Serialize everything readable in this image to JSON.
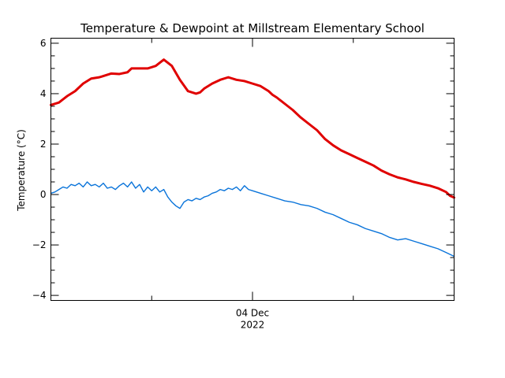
{
  "chart_data": {
    "type": "line",
    "title": "Temperature & Dewpoint at Millstream Elementary School",
    "ylabel": "Temperature (°C)",
    "xlabel": "",
    "ylim": [
      -4.2,
      6.2
    ],
    "xlim": [
      0,
      100
    ],
    "yticks": [
      {
        "value": 6,
        "label": "6"
      },
      {
        "value": 4,
        "label": "4"
      },
      {
        "value": 2,
        "label": "2"
      },
      {
        "value": 0,
        "label": "0"
      },
      {
        "value": -2,
        "label": "−2"
      },
      {
        "value": -4,
        "label": "−4"
      }
    ],
    "y_minor_step": 0.5,
    "xticks": [
      {
        "value": 50,
        "label": "04 Dec",
        "sublabel": "2022"
      }
    ],
    "x_minor_ticks": [
      0,
      25,
      50,
      75,
      100
    ],
    "grid": false,
    "series": [
      {
        "name": "",
        "color": "#e00000",
        "width": 3,
        "x": [
          0,
          2,
          4,
          6,
          8,
          10,
          12,
          14,
          15,
          17,
          19,
          20,
          22,
          24,
          26,
          28,
          30,
          32,
          34,
          36,
          37,
          38,
          40,
          42,
          44,
          46,
          48,
          50,
          52,
          54,
          55,
          56,
          58,
          60,
          62,
          64,
          66,
          68,
          70,
          72,
          74,
          76,
          78,
          80,
          82,
          84,
          86,
          88,
          90,
          92,
          94,
          96,
          98,
          99,
          100
        ],
        "y": [
          3.55,
          3.65,
          3.9,
          4.1,
          4.4,
          4.6,
          4.65,
          4.75,
          4.8,
          4.78,
          4.85,
          5.0,
          5.0,
          5.0,
          5.1,
          5.35,
          5.1,
          4.55,
          4.1,
          4.0,
          4.05,
          4.2,
          4.4,
          4.55,
          4.65,
          4.55,
          4.5,
          4.4,
          4.3,
          4.1,
          3.95,
          3.85,
          3.6,
          3.35,
          3.05,
          2.8,
          2.55,
          2.2,
          1.95,
          1.75,
          1.6,
          1.45,
          1.3,
          1.15,
          0.95,
          0.8,
          0.68,
          0.6,
          0.5,
          0.42,
          0.35,
          0.25,
          0.1,
          -0.05,
          -0.12
        ]
      },
      {
        "name": "",
        "color": "#0a74da",
        "width": 1.4,
        "x": [
          0,
          1,
          2,
          3,
          4,
          5,
          6,
          7,
          8,
          9,
          10,
          11,
          12,
          13,
          14,
          15,
          16,
          17,
          18,
          19,
          20,
          21,
          22,
          23,
          24,
          25,
          26,
          27,
          28,
          29,
          30,
          31,
          32,
          33,
          34,
          35,
          36,
          37,
          38,
          39,
          40,
          41,
          42,
          43,
          44,
          45,
          46,
          47,
          48,
          49,
          50,
          52,
          54,
          56,
          58,
          60,
          62,
          64,
          66,
          68,
          70,
          72,
          74,
          76,
          78,
          80,
          82,
          84,
          86,
          88,
          90,
          92,
          94,
          96,
          98,
          100
        ],
        "y": [
          0.05,
          0.1,
          0.2,
          0.3,
          0.25,
          0.4,
          0.35,
          0.45,
          0.3,
          0.5,
          0.35,
          0.4,
          0.3,
          0.45,
          0.25,
          0.3,
          0.2,
          0.35,
          0.45,
          0.3,
          0.5,
          0.25,
          0.4,
          0.1,
          0.3,
          0.15,
          0.3,
          0.1,
          0.2,
          -0.1,
          -0.3,
          -0.45,
          -0.55,
          -0.3,
          -0.2,
          -0.25,
          -0.15,
          -0.2,
          -0.1,
          -0.05,
          0.05,
          0.1,
          0.2,
          0.15,
          0.25,
          0.2,
          0.3,
          0.15,
          0.35,
          0.2,
          0.15,
          0.05,
          -0.05,
          -0.15,
          -0.25,
          -0.3,
          -0.4,
          -0.45,
          -0.55,
          -0.7,
          -0.8,
          -0.95,
          -1.1,
          -1.2,
          -1.35,
          -1.45,
          -1.55,
          -1.7,
          -1.8,
          -1.75,
          -1.85,
          -1.95,
          -2.05,
          -2.15,
          -2.3,
          -2.45
        ]
      }
    ]
  }
}
